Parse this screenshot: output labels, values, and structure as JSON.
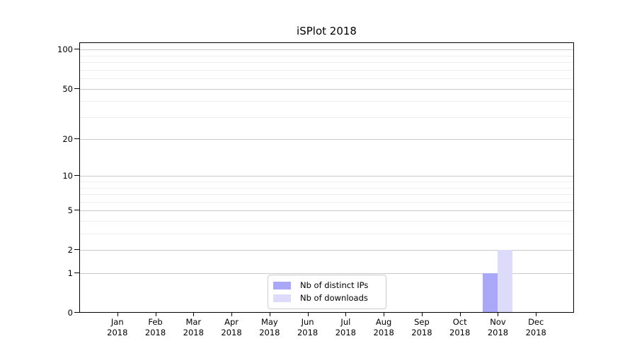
{
  "chart_data": {
    "type": "bar",
    "title": "iSPlot 2018",
    "categories": [
      "Jan",
      "Feb",
      "Mar",
      "Apr",
      "May",
      "Jun",
      "Jul",
      "Aug",
      "Sep",
      "Oct",
      "Nov",
      "Dec"
    ],
    "year_label": "2018",
    "series": [
      {
        "name": "Nb of distinct IPs",
        "color": "#a8a8f7",
        "values": [
          0,
          0,
          0,
          0,
          0,
          0,
          0,
          0,
          0,
          0,
          1,
          0
        ]
      },
      {
        "name": "Nb of downloads",
        "color": "#dcdcfa",
        "values": [
          0,
          0,
          0,
          0,
          0,
          0,
          0,
          0,
          0,
          0,
          2,
          0
        ]
      }
    ],
    "yscale": "log1p",
    "yticks": [
      0,
      1,
      2,
      5,
      10,
      20,
      50,
      100
    ],
    "minor_gridlines": [
      3,
      4,
      6,
      7,
      8,
      9,
      30,
      40,
      60,
      70,
      80,
      90
    ],
    "ylim": [
      0,
      113
    ],
    "grid": "horizontal-major-and-minor",
    "legend_position": "lower-center-inside",
    "colors": {
      "bar_distinct_ips": "#a8a8f7",
      "bar_downloads": "#dcdcfa",
      "major_grid": "#c8c8c8",
      "minor_grid": "#ededed",
      "axis": "#000000",
      "text": "#000000",
      "background": "#ffffff",
      "legend_border": "#cccccc"
    }
  }
}
